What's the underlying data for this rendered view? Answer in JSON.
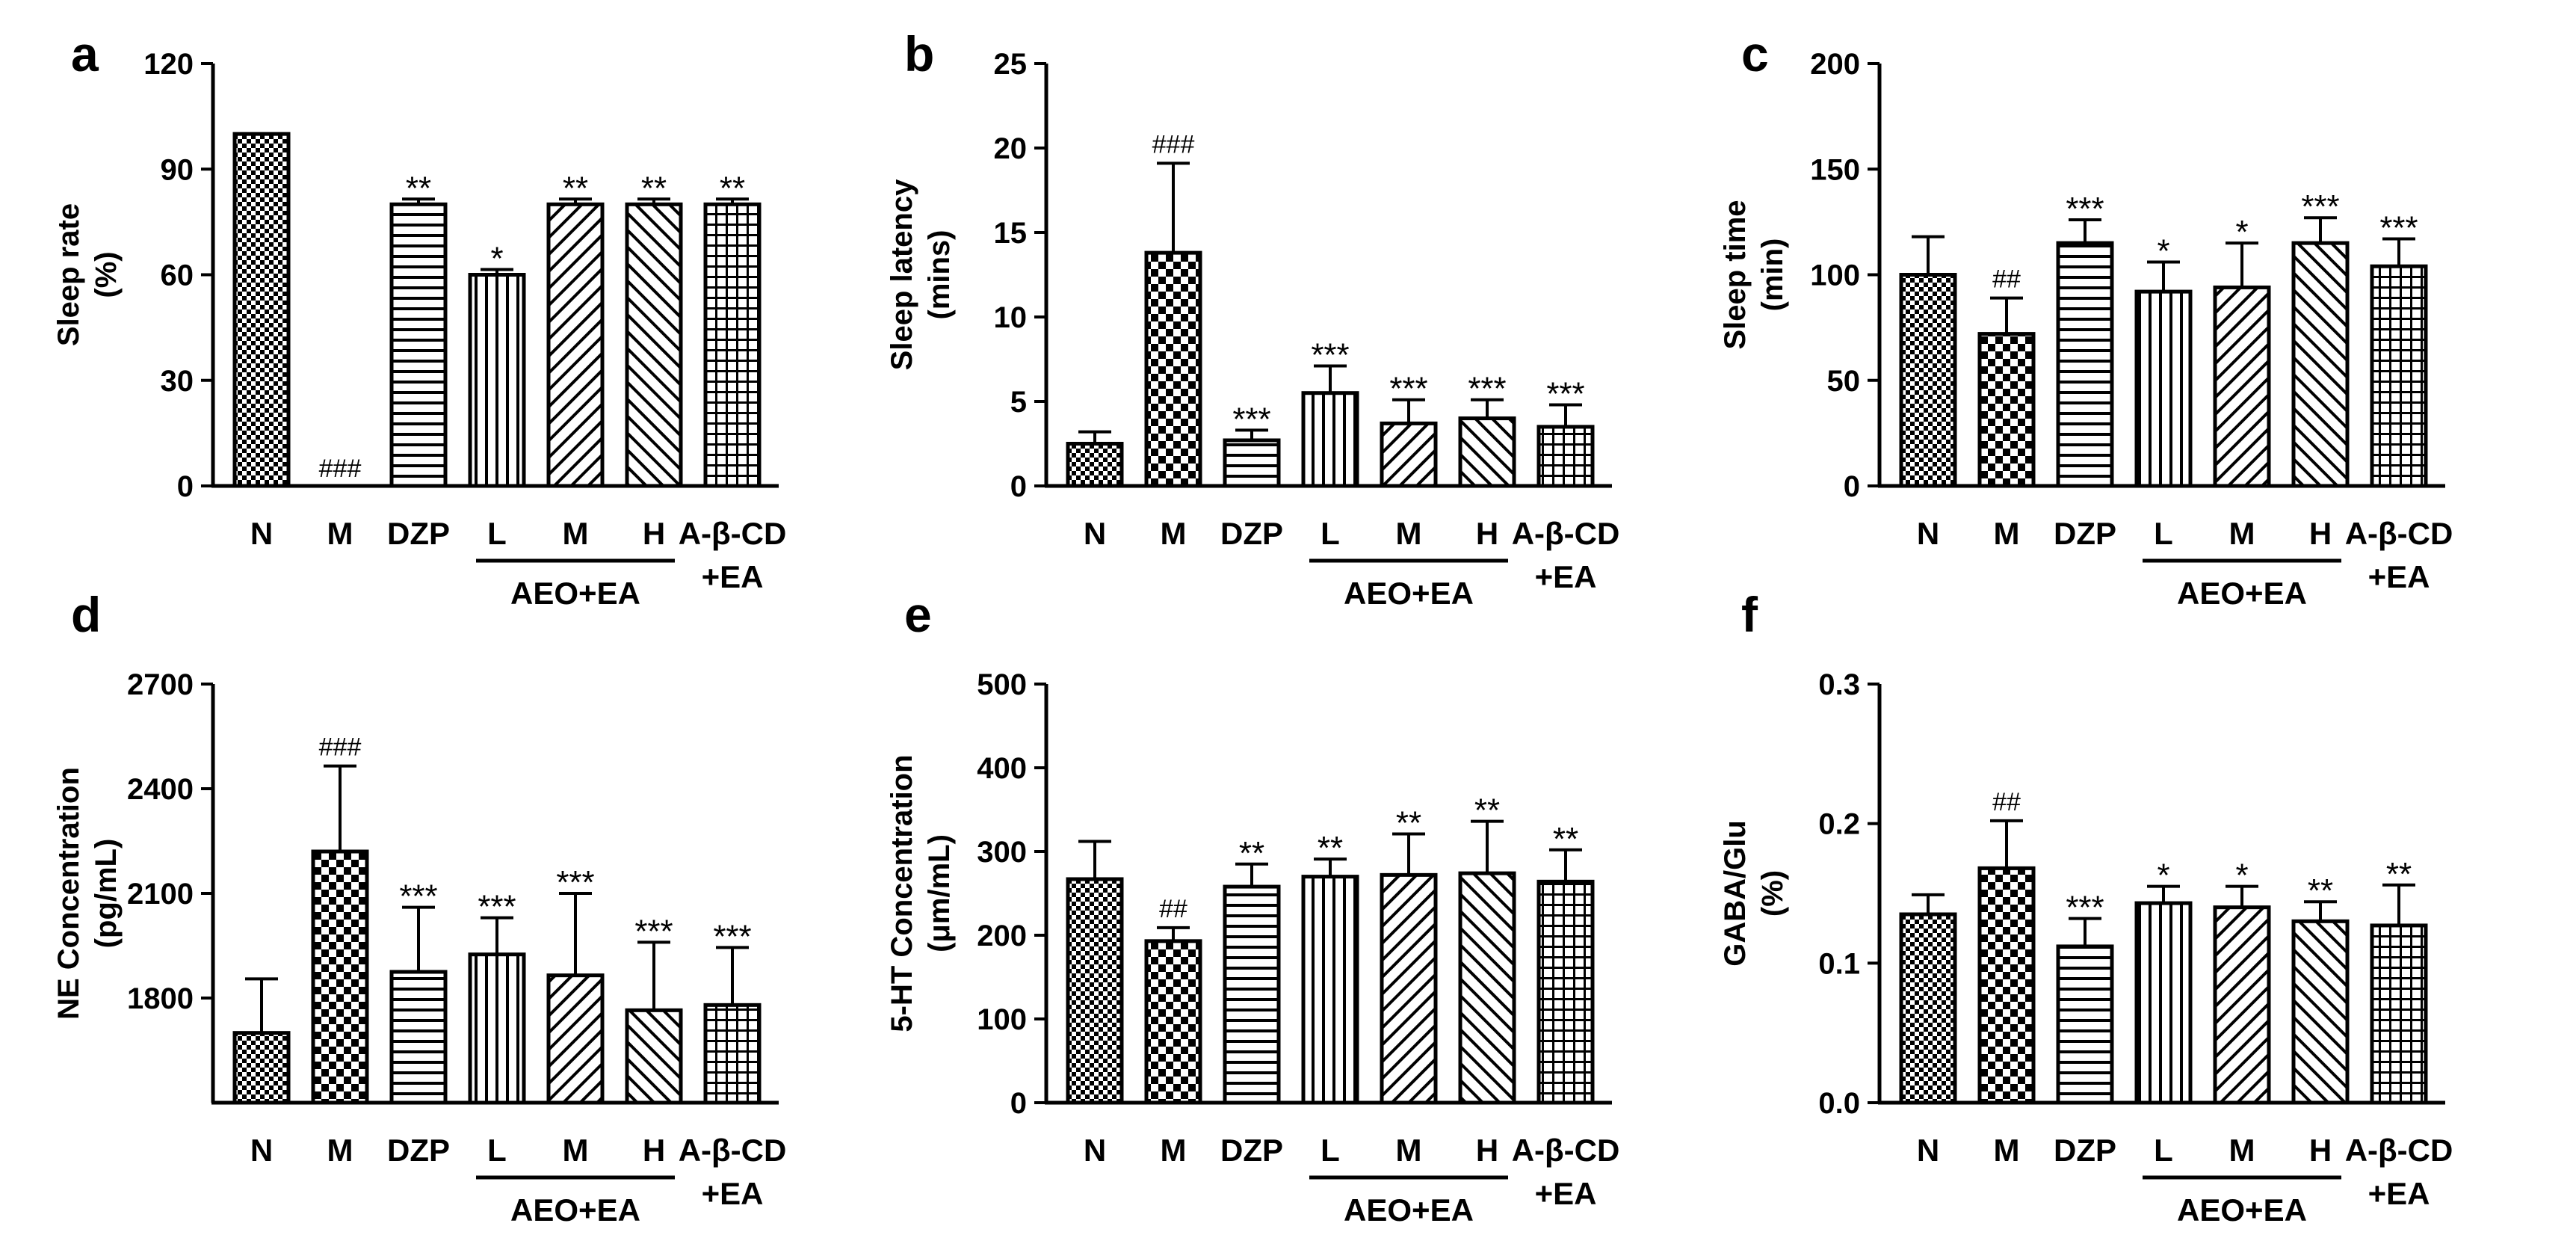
{
  "figure": {
    "group_label": "AEO+EA",
    "last_group_line1": "A-β-CD",
    "last_group_line2": "+EA"
  },
  "chart_data": [
    {
      "type": "bar",
      "panel_label": "a",
      "ylabel_line1": "Sleep rate",
      "ylabel_line2": "(%)",
      "ylim": [
        0,
        120
      ],
      "yticks": [
        0,
        30,
        60,
        90,
        120
      ],
      "categories": [
        "N",
        "M",
        "DZP",
        "L",
        "M",
        "H",
        "A-β-CD\n+EA"
      ],
      "tick_labels": [
        "N",
        "M",
        "DZP",
        "L",
        "M",
        "H",
        "A-β-CD"
      ],
      "values": [
        100,
        0,
        80,
        60,
        80,
        80,
        80
      ],
      "errors": [
        0,
        0,
        1.5,
        1.5,
        1.5,
        1.5,
        1.5
      ],
      "annotations": [
        "",
        "###",
        "**",
        "*",
        "**",
        "**",
        "**"
      ]
    },
    {
      "type": "bar",
      "panel_label": "b",
      "ylabel_line1": "Sleep latency",
      "ylabel_line2": "(mins)",
      "ylim": [
        0,
        25
      ],
      "yticks": [
        0,
        5,
        10,
        15,
        20,
        25
      ],
      "categories": [
        "N",
        "M",
        "DZP",
        "L",
        "M",
        "H",
        "A-β-CD\n+EA"
      ],
      "tick_labels": [
        "N",
        "M",
        "DZP",
        "L",
        "M",
        "H",
        "A-β-CD"
      ],
      "values": [
        2.5,
        13.8,
        2.7,
        5.5,
        3.7,
        4.0,
        3.5
      ],
      "errors": [
        0.7,
        5.3,
        0.6,
        1.6,
        1.4,
        1.1,
        1.3
      ],
      "annotations": [
        "",
        "###",
        "***",
        "***",
        "***",
        "***",
        "***"
      ]
    },
    {
      "type": "bar",
      "panel_label": "c",
      "ylabel_line1": "Sleep time",
      "ylabel_line2": "(min)",
      "ylim": [
        0,
        200
      ],
      "yticks": [
        0,
        50,
        100,
        150,
        200
      ],
      "categories": [
        "N",
        "M",
        "DZP",
        "L",
        "M",
        "H",
        "A-β-CD\n+EA"
      ],
      "tick_labels": [
        "N",
        "M",
        "DZP",
        "L",
        "M",
        "H",
        "A-β-CD"
      ],
      "values": [
        100,
        72,
        115,
        92,
        94,
        115,
        104
      ],
      "errors": [
        18,
        17,
        11,
        14,
        21,
        12,
        13
      ],
      "annotations": [
        "",
        "##",
        "***",
        "*",
        "*",
        "***",
        "***"
      ]
    },
    {
      "type": "bar",
      "panel_label": "d",
      "ylabel_line1": "NE Concentration",
      "ylabel_line2": "(pg/mL)",
      "ylim": [
        1500,
        2700
      ],
      "yticks": [
        1800,
        2100,
        2400,
        2700
      ],
      "categories": [
        "N",
        "M",
        "DZP",
        "L",
        "M",
        "H",
        "A-β-CD\n+EA"
      ],
      "tick_labels": [
        "N",
        "M",
        "DZP",
        "L",
        "M",
        "H",
        "A-β-CD"
      ],
      "values": [
        1700,
        2220,
        1875,
        1925,
        1865,
        1765,
        1780
      ],
      "errors": [
        155,
        245,
        185,
        105,
        235,
        195,
        165
      ],
      "annotations": [
        "",
        "###",
        "***",
        "***",
        "***",
        "***",
        "***"
      ]
    },
    {
      "type": "bar",
      "panel_label": "e",
      "ylabel_line1": "5-HT Concentration",
      "ylabel_line2": "(μm/mL)",
      "ylim": [
        0,
        500
      ],
      "yticks": [
        0,
        100,
        200,
        300,
        400,
        500
      ],
      "categories": [
        "N",
        "M",
        "DZP",
        "L",
        "M",
        "H",
        "A-β-CD\n+EA"
      ],
      "tick_labels": [
        "N",
        "M",
        "DZP",
        "L",
        "M",
        "H",
        "A-β-CD"
      ],
      "values": [
        267,
        193,
        258,
        270,
        272,
        274,
        264
      ],
      "errors": [
        45,
        16,
        27,
        21,
        49,
        62,
        38
      ],
      "annotations": [
        "",
        "##",
        "**",
        "**",
        "**",
        "**",
        "**"
      ]
    },
    {
      "type": "bar",
      "panel_label": "f",
      "ylabel_line1": "GABA/Glu",
      "ylabel_line2": "(%)",
      "ylim": [
        0,
        0.3
      ],
      "yticks": [
        "0.0",
        "0.1",
        "0.2",
        "0.3"
      ],
      "categories": [
        "N",
        "M",
        "DZP",
        "L",
        "M",
        "H",
        "A-β-CD\n+EA"
      ],
      "tick_labels": [
        "N",
        "M",
        "DZP",
        "L",
        "M",
        "H",
        "A-β-CD"
      ],
      "values": [
        0.135,
        0.168,
        0.112,
        0.143,
        0.14,
        0.13,
        0.127
      ],
      "errors": [
        0.014,
        0.034,
        0.02,
        0.012,
        0.015,
        0.014,
        0.029
      ],
      "annotations": [
        "",
        "##",
        "***",
        "*",
        "*",
        "**",
        "**"
      ]
    }
  ]
}
